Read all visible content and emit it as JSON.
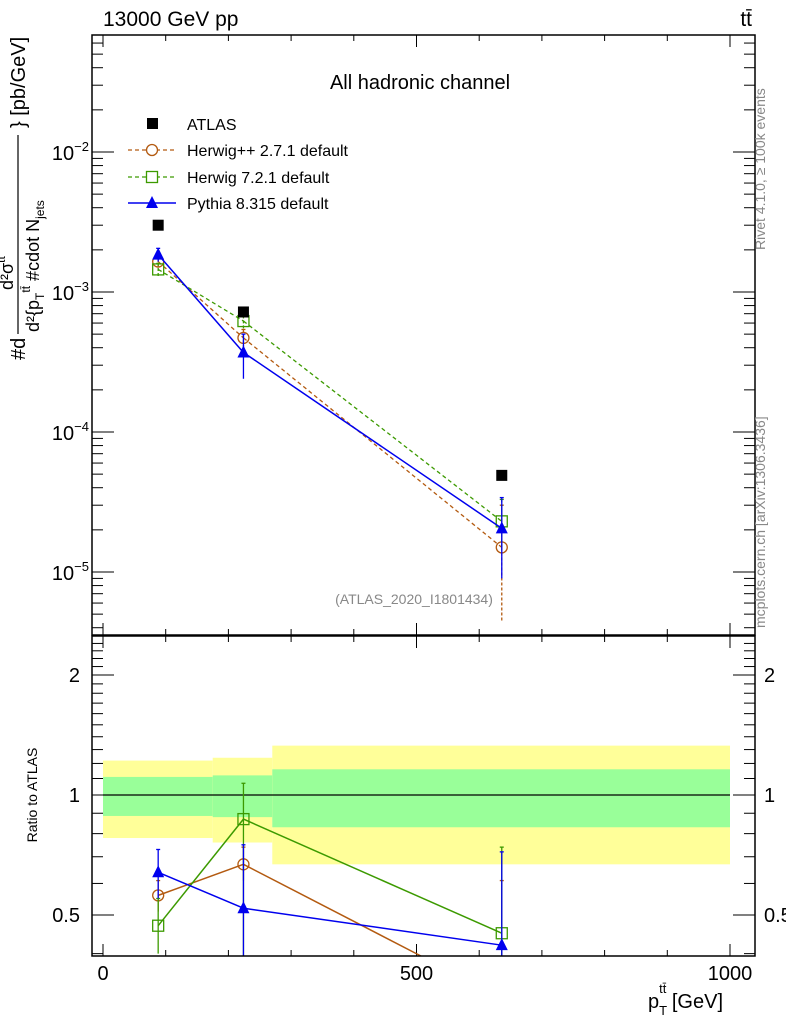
{
  "header": {
    "left": "13000 GeV pp",
    "right": "tt̄"
  },
  "side_text": {
    "rivet": "Rivet 4.1.0, ≥ 100k events",
    "mcplots": "mcplots.cern.ch [arXiv:1306.3436]"
  },
  "colors": {
    "atlas": "#000000",
    "herwigpp": "#b35a10",
    "herwig7": "#3c9a00",
    "pythia": "#0000ee",
    "band_outer": "#ffff99",
    "band_inner": "#99ff99"
  },
  "chart_data": [
    {
      "type": "line",
      "title": "All hadronic channel",
      "annotation": "(ATLAS_2020_I1801434)",
      "ylabel_parts": {
        "prefix": "#d",
        "numerator": "d²σ",
        "num_sup": "tt",
        "denominator": "d²{p",
        "den_sub": "T",
        "den_sup": "tt̄",
        "den_rest": "#cdot N",
        "den_sub2": "jets",
        "units": "} [pb/GeV]"
      },
      "yscale": "log",
      "ylim": [
        3.6e-06,
        0.069
      ],
      "yticks": [
        {
          "v": 0.01,
          "base": "10",
          "exp": "−2"
        },
        {
          "v": 0.001,
          "base": "10",
          "exp": "−3"
        },
        {
          "v": 0.0001,
          "base": "10",
          "exp": "−4"
        },
        {
          "v": 1e-05,
          "base": "10",
          "exp": "−5"
        }
      ],
      "xlim": [
        -18,
        1040
      ],
      "x": [
        88,
        224,
        636
      ],
      "bins": [
        [
          0,
          175
        ],
        [
          175,
          270
        ],
        [
          270,
          1000
        ]
      ],
      "legend_placement": "top-left",
      "series": [
        {
          "key": "atlas",
          "name": "ATLAS",
          "marker": "square-filled",
          "values": [
            0.003,
            0.00072,
            4.9e-05
          ]
        },
        {
          "key": "herwigpp",
          "name": "Herwig++ 2.7.1 default",
          "marker": "circle-open",
          "dash": "dashed",
          "values": [
            0.00165,
            0.00047,
            1.5e-05
          ],
          "err_lo": [
            0.0015,
            0.0004,
            4.5e-06
          ],
          "err_hi": [
            0.0018,
            0.00054,
            3e-05
          ]
        },
        {
          "key": "herwig7",
          "name": "Herwig 7.2.1 default",
          "marker": "square-open",
          "dash": "dashed",
          "values": [
            0.00145,
            0.00062,
            2.3e-05
          ],
          "err_lo": [
            0.0013,
            0.00055,
            1.5e-05
          ],
          "err_hi": [
            0.0016,
            0.0007,
            3.3e-05
          ]
        },
        {
          "key": "pythia",
          "name": "Pythia 8.315 default",
          "marker": "triangle-filled",
          "dash": "solid",
          "values": [
            0.00185,
            0.00037,
            2.05e-05
          ],
          "err_lo": [
            0.00165,
            0.00024,
            9e-06
          ],
          "err_hi": [
            0.00205,
            0.0005,
            3.4e-05
          ]
        }
      ]
    },
    {
      "type": "line",
      "ylabel": "Ratio to ATLAS",
      "xlabel_parts": {
        "p": "p",
        "sub": "T",
        "sup": "tt̄",
        "rest": "[GeV]"
      },
      "yscale": "log2",
      "ylim": [
        0.395,
        2.49
      ],
      "yticks": [
        {
          "v": 0.5,
          "label": "0.5"
        },
        {
          "v": 1,
          "label": "1"
        },
        {
          "v": 2,
          "label": "2"
        }
      ],
      "xticks": [
        {
          "v": 0,
          "label": "0"
        },
        {
          "v": 500,
          "label": "500"
        },
        {
          "v": 1000,
          "label": "1000"
        }
      ],
      "x": [
        88,
        224,
        636
      ],
      "bands": [
        {
          "bin": [
            0,
            175
          ],
          "outer": [
            0.78,
            1.22
          ],
          "inner": [
            0.886,
            1.11
          ]
        },
        {
          "bin": [
            175,
            270
          ],
          "outer": [
            0.76,
            1.24
          ],
          "inner": [
            0.88,
            1.12
          ]
        },
        {
          "bin": [
            270,
            1000
          ],
          "outer": [
            0.67,
            1.33
          ],
          "inner": [
            0.83,
            1.16
          ]
        }
      ],
      "series": [
        {
          "key": "herwigpp",
          "values": [
            0.56,
            0.67,
            0.31
          ],
          "err_lo": [
            0.51,
            0.61,
            0.09
          ],
          "err_hi": [
            0.61,
            0.74,
            0.61
          ]
        },
        {
          "key": "herwig7",
          "values": [
            0.47,
            0.87,
            0.45
          ],
          "err_lo": [
            0.4,
            0.35,
            0.3
          ],
          "err_hi": [
            0.55,
            1.07,
            0.74
          ]
        },
        {
          "key": "pythia",
          "values": [
            0.64,
            0.52,
            0.42
          ],
          "err_lo": [
            0.55,
            0.35,
            0.3
          ],
          "err_hi": [
            0.73,
            0.75,
            0.72
          ]
        }
      ]
    }
  ]
}
